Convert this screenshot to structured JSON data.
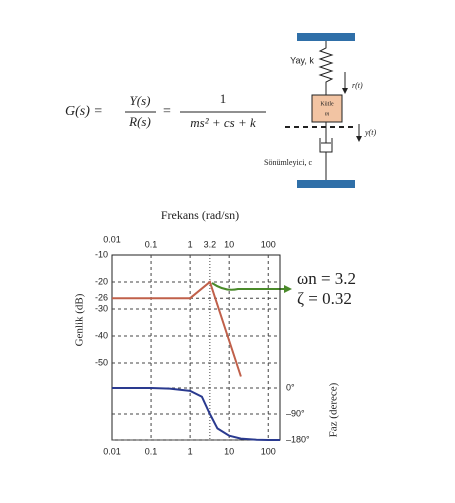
{
  "formula": {
    "lhs": "G(s) =",
    "num1": "Y(s)",
    "den1": "R(s)",
    "eq": "=",
    "num2": "1",
    "den2": "ms² + cs + k"
  },
  "system": {
    "spring": "Yay, k",
    "mass": "Kütle",
    "mass_symbol": "m",
    "input": "r(t)",
    "output": "y(t)",
    "damper": "Sönümleyici, c"
  },
  "bode": {
    "x_label": "Frekans (rad/sn)",
    "magnitude_label": "Genlik (dB)",
    "phase_label": "Faz (derece)",
    "log_x": true,
    "xlim": [
      0.01,
      200
    ],
    "xticks_top": [
      0.01,
      0.1,
      1,
      3.2,
      10,
      100
    ],
    "xticks_bottom": [
      0.01,
      0.1,
      1,
      10,
      100
    ],
    "magnitude": {
      "color": "#c0604a",
      "ylim": [
        -10,
        -60
      ],
      "yticks": [
        -10,
        -20,
        -26,
        -30,
        -40,
        -50
      ],
      "x": [
        0.01,
        1,
        3.2,
        20
      ],
      "values": [
        -26,
        -26,
        -20,
        -55
      ]
    },
    "phase": {
      "color": "#2a3a8f",
      "ylim": [
        0,
        -180
      ],
      "yticks": [
        {
          "value": 0,
          "label": "0°"
        },
        {
          "value": -90,
          "label": "–90°"
        },
        {
          "value": -180,
          "label": "–180°"
        }
      ],
      "x": [
        0.01,
        0.1,
        0.3,
        1,
        2,
        3.2,
        5,
        10,
        20,
        50,
        100,
        200
      ],
      "values": [
        0,
        0,
        -2,
        -10,
        -30,
        -90,
        -140,
        -165,
        -175,
        -179,
        -180,
        -180
      ]
    },
    "annotations": [
      "ωn = 3.2",
      "ζ = 0.32"
    ]
  }
}
